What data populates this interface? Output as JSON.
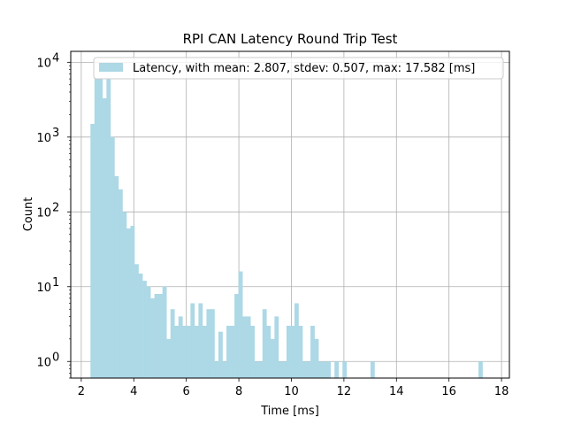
{
  "chart_data": {
    "type": "bar",
    "title": "RPI CAN Latency Round Trip Test",
    "xlabel": "Time [ms]",
    "ylabel": "Count",
    "xlim": [
      1.6,
      18.3
    ],
    "ylim": [
      0.6,
      14000
    ],
    "yscale": "log",
    "grid": true,
    "legend_position": "top-right",
    "bar_color": "#add8e6",
    "x_ticks": [
      2,
      4,
      6,
      8,
      10,
      12,
      14,
      16,
      18
    ],
    "y_ticks": [
      {
        "value": 1,
        "label": "10",
        "exponent": "0"
      },
      {
        "value": 10,
        "label": "10",
        "exponent": "1"
      },
      {
        "value": 100,
        "label": "10",
        "exponent": "2"
      },
      {
        "value": 1000,
        "label": "10",
        "exponent": "3"
      },
      {
        "value": 10000,
        "label": "10",
        "exponent": "4"
      }
    ],
    "series": [
      {
        "name": "Latency, with mean: 2.807, stdev: 0.507, max: 17.582 [ms]",
        "bin_start": 2.35,
        "bin_width": 0.1523,
        "values": [
          1500,
          6000,
          6000,
          3300,
          6000,
          1000,
          300,
          200,
          100,
          60,
          65,
          20,
          15,
          12,
          10,
          7,
          8,
          8,
          10,
          2,
          5,
          3,
          4,
          3,
          3,
          6,
          3,
          6,
          3,
          5,
          5,
          1,
          2.5,
          1,
          3,
          3,
          8,
          16,
          4,
          4,
          3,
          1,
          1,
          5,
          3,
          2,
          4,
          1,
          1,
          3,
          3,
          6,
          3,
          1,
          1,
          3,
          2,
          1,
          1,
          1,
          0,
          1,
          0,
          1,
          0,
          0,
          0,
          0,
          0,
          0,
          1,
          0,
          0,
          0,
          0,
          0,
          0,
          0,
          0,
          0,
          0,
          0,
          0,
          0,
          0,
          0,
          0,
          0,
          0,
          0,
          0,
          0,
          0,
          0,
          0,
          0,
          0,
          1
        ]
      }
    ]
  }
}
